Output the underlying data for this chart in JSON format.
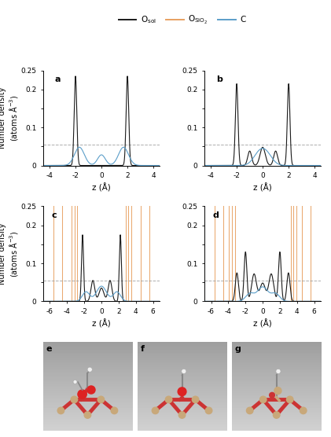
{
  "dashed_level": 0.055,
  "ylim": [
    0,
    0.25
  ],
  "yticks": [
    0,
    0.05,
    0.1,
    0.15,
    0.2,
    0.25
  ],
  "yticklabels": [
    "0",
    "",
    "0.1",
    "",
    "0.2",
    "0.25"
  ],
  "ylabel": "Number density\n(atoms Å$^{-3}$)",
  "xlabel": "z (Å)",
  "color_black": "#1a1a1a",
  "color_orange": "#E8A060",
  "color_blue": "#5B9EC9",
  "color_gray_dash": "#999999",
  "panel_ab_xlim": [
    -4.5,
    4.5
  ],
  "panel_ab_xticks": [
    -4,
    -2,
    0,
    2,
    4
  ],
  "panel_cd_xlim": [
    -6.8,
    6.8
  ],
  "panel_cd_xticks": [
    -6,
    -4,
    -2,
    0,
    2,
    4,
    6
  ],
  "sio2_c": [
    -5.6,
    -4.6,
    -3.5,
    -3.15,
    -2.85,
    2.85,
    3.15,
    3.5,
    4.6,
    5.6
  ],
  "sio2_d": [
    -5.6,
    -4.6,
    -3.9,
    -3.55,
    -3.25,
    3.25,
    3.55,
    3.9,
    4.6,
    5.6
  ],
  "mol_bg": "#C2C2C2",
  "si_color": "#C8A87A",
  "o_color": "#CC3333",
  "o_bright": "#DD2222",
  "h_color": "#F0F0F0",
  "bond_color": "#AA8855"
}
